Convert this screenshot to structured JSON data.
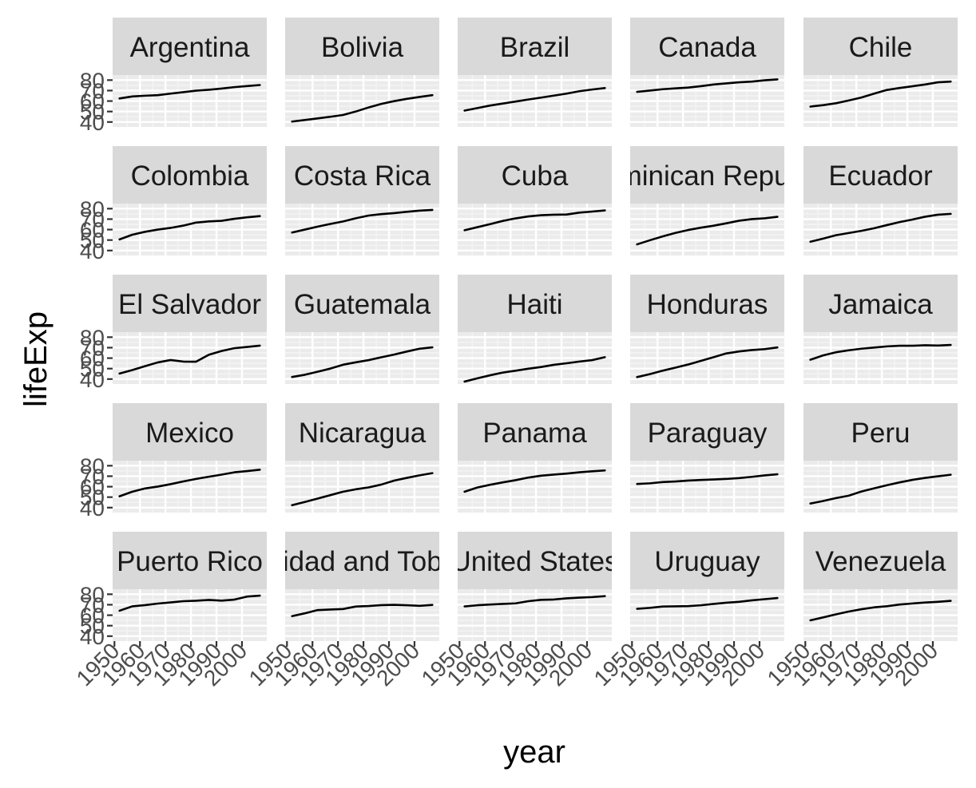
{
  "chart_data": {
    "type": "line",
    "xlabel": "year",
    "ylabel": "lifeExp",
    "facet_columns": 5,
    "x": [
      1952,
      1957,
      1962,
      1967,
      1972,
      1977,
      1982,
      1987,
      1992,
      1997,
      2002,
      2007
    ],
    "xlim": [
      1952,
      2007
    ],
    "ylim": [
      37.5,
      82.6
    ],
    "x_ticks": [
      1950,
      1960,
      1970,
      1980,
      1990,
      2000
    ],
    "x_tick_labels": [
      "1950",
      "1960",
      "1970",
      "1980",
      "1990",
      "2000"
    ],
    "y_ticks": [
      40,
      50,
      60,
      70,
      80
    ],
    "y_tick_labels": [
      "40",
      "50",
      "60",
      "70",
      "80"
    ],
    "grid": true,
    "line_color": "#000000",
    "panel_bg": "#ebebeb",
    "strip_bg": "#d9d9d9",
    "series": [
      {
        "name": "Argentina",
        "values": [
          62.5,
          64.4,
          65.1,
          65.6,
          67.1,
          68.5,
          69.9,
          70.8,
          71.9,
          73.3,
          74.3,
          75.3
        ]
      },
      {
        "name": "Bolivia",
        "values": [
          40.4,
          41.9,
          43.4,
          45.0,
          46.7,
          50.0,
          53.9,
          57.3,
          59.9,
          62.1,
          63.9,
          65.6
        ]
      },
      {
        "name": "Brazil",
        "values": [
          50.9,
          53.3,
          55.7,
          57.6,
          59.5,
          61.5,
          63.3,
          65.2,
          67.1,
          69.4,
          71.0,
          72.4
        ]
      },
      {
        "name": "Canada",
        "values": [
          68.8,
          70.0,
          71.3,
          72.1,
          72.9,
          74.2,
          75.8,
          76.9,
          77.9,
          78.6,
          79.8,
          80.7
        ]
      },
      {
        "name": "Chile",
        "values": [
          54.7,
          56.1,
          57.9,
          60.5,
          63.4,
          67.1,
          70.6,
          72.5,
          74.1,
          75.8,
          77.9,
          78.6
        ]
      },
      {
        "name": "Colombia",
        "values": [
          50.6,
          55.1,
          57.9,
          60.0,
          61.6,
          63.8,
          66.7,
          67.8,
          68.4,
          70.3,
          71.7,
          72.9
        ]
      },
      {
        "name": "Costa Rica",
        "values": [
          57.2,
          60.0,
          62.8,
          65.4,
          67.8,
          70.8,
          73.4,
          74.8,
          75.7,
          77.0,
          78.1,
          78.8
        ]
      },
      {
        "name": "Cuba",
        "values": [
          59.4,
          62.3,
          65.2,
          68.3,
          70.7,
          72.6,
          73.7,
          74.2,
          74.4,
          76.2,
          77.2,
          78.3
        ]
      },
      {
        "name": "Dominican Republic",
        "values": [
          45.9,
          49.8,
          53.5,
          56.8,
          59.6,
          61.8,
          63.7,
          66.0,
          68.5,
          70.0,
          70.8,
          72.2
        ]
      },
      {
        "name": "Ecuador",
        "values": [
          48.4,
          51.4,
          54.6,
          56.7,
          58.8,
          61.3,
          64.3,
          67.2,
          69.6,
          72.3,
          74.2,
          75.0
        ]
      },
      {
        "name": "El Salvador",
        "values": [
          45.3,
          48.6,
          52.3,
          55.9,
          58.2,
          56.7,
          56.6,
          63.2,
          66.8,
          69.5,
          70.7,
          71.9
        ]
      },
      {
        "name": "Guatemala",
        "values": [
          42.0,
          44.1,
          47.0,
          50.0,
          53.7,
          56.0,
          58.1,
          60.8,
          63.4,
          66.3,
          68.98,
          70.3
        ]
      },
      {
        "name": "Haiti",
        "values": [
          37.6,
          40.7,
          43.6,
          46.2,
          48.0,
          49.9,
          51.5,
          53.6,
          55.1,
          56.7,
          58.1,
          60.9
        ]
      },
      {
        "name": "Honduras",
        "values": [
          41.9,
          44.7,
          48.0,
          50.9,
          53.9,
          57.4,
          60.9,
          64.5,
          66.4,
          67.7,
          68.6,
          70.2
        ]
      },
      {
        "name": "Jamaica",
        "values": [
          58.5,
          62.6,
          65.6,
          67.5,
          69.0,
          70.1,
          71.2,
          71.8,
          71.8,
          72.3,
          72.0,
          72.6
        ]
      },
      {
        "name": "Mexico",
        "values": [
          50.8,
          55.2,
          58.3,
          60.1,
          62.4,
          65.0,
          67.4,
          69.5,
          71.5,
          73.7,
          74.9,
          76.2
        ]
      },
      {
        "name": "Nicaragua",
        "values": [
          42.3,
          45.4,
          48.6,
          51.9,
          55.2,
          57.5,
          59.3,
          62.0,
          65.8,
          68.4,
          70.8,
          72.9
        ]
      },
      {
        "name": "Panama",
        "values": [
          55.2,
          59.2,
          61.8,
          64.1,
          66.2,
          68.7,
          70.5,
          71.5,
          72.5,
          73.7,
          74.7,
          75.5
        ]
      },
      {
        "name": "Paraguay",
        "values": [
          62.6,
          63.2,
          64.4,
          64.95,
          65.8,
          66.4,
          66.9,
          67.4,
          68.2,
          69.4,
          70.8,
          71.8
        ]
      },
      {
        "name": "Peru",
        "values": [
          43.9,
          46.3,
          49.1,
          51.4,
          55.4,
          58.4,
          61.4,
          64.1,
          66.5,
          68.4,
          69.9,
          71.4
        ]
      },
      {
        "name": "Puerto Rico",
        "values": [
          64.3,
          68.5,
          69.6,
          71.1,
          72.2,
          73.4,
          73.8,
          74.6,
          73.9,
          74.9,
          77.8,
          78.7
        ]
      },
      {
        "name": "Trinidad and Tobago",
        "values": [
          59.1,
          61.8,
          64.9,
          65.4,
          65.9,
          68.3,
          68.8,
          69.6,
          69.9,
          69.5,
          68.98,
          69.8
        ]
      },
      {
        "name": "United States",
        "values": [
          68.4,
          69.5,
          70.2,
          70.8,
          71.3,
          73.4,
          74.7,
          75.0,
          76.1,
          76.8,
          77.3,
          78.2
        ]
      },
      {
        "name": "Uruguay",
        "values": [
          66.1,
          67.0,
          68.3,
          68.5,
          68.7,
          69.5,
          70.8,
          71.9,
          72.8,
          74.2,
          75.3,
          76.4
        ]
      },
      {
        "name": "Venezuela",
        "values": [
          55.1,
          57.9,
          60.8,
          63.5,
          65.7,
          67.5,
          68.6,
          70.2,
          71.2,
          72.1,
          72.8,
          73.7
        ]
      }
    ]
  }
}
